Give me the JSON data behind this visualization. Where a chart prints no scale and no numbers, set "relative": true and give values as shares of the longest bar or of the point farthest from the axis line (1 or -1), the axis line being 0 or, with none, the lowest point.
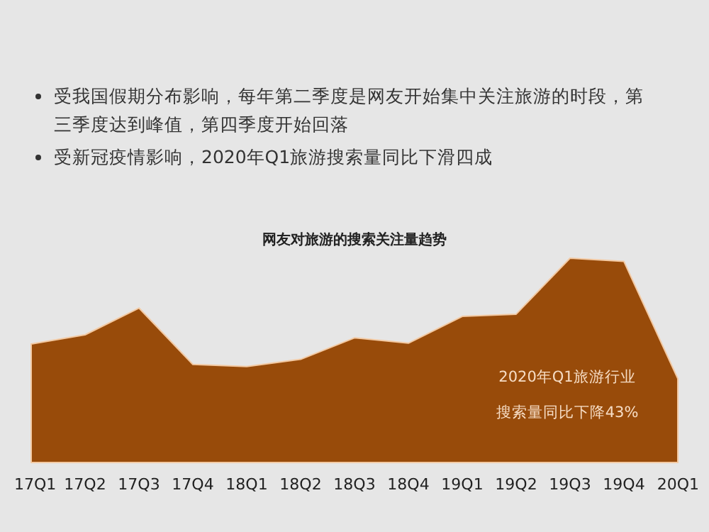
{
  "chart_data": {
    "type": "area",
    "title": "网友对旅游的搜索关注量趋势",
    "relative": true,
    "color": "#984b0a",
    "categories": [
      "17Q1",
      "17Q2",
      "17Q3",
      "17Q4",
      "18Q1",
      "18Q2",
      "18Q3",
      "18Q4",
      "19Q1",
      "19Q2",
      "19Q3",
      "19Q4",
      "20Q1"
    ],
    "values": [
      0.58,
      0.625,
      0.756,
      0.48,
      0.47,
      0.505,
      0.61,
      0.584,
      0.715,
      0.726,
      1.0,
      0.984,
      0.41
    ],
    "annotations": [
      "受我国假期分布影响，每年第二季度是网友开始集中关注旅游的时段，第三季度达到峰值，第四季度开始回落",
      "受新冠疫情影响，2020年Q1旅游搜索量同比下滑四成",
      "2020年Q1旅游行业",
      "搜索量同比下降43%"
    ]
  }
}
